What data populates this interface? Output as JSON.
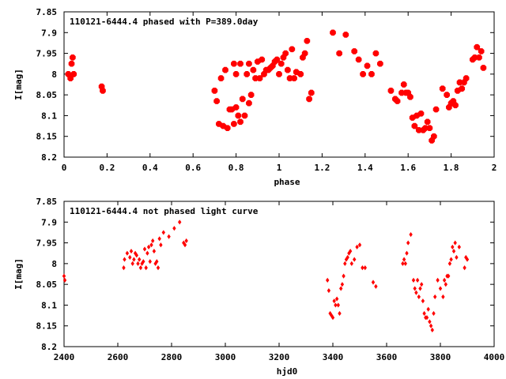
{
  "chart_data": [
    {
      "type": "scatter",
      "title": "110121-6444.4 phased with P=389.0day",
      "xlabel": "phase",
      "ylabel": "I[mag]",
      "xlim": [
        0,
        2
      ],
      "ylim": [
        7.85,
        8.2
      ],
      "y_inverted": true,
      "xticks": [
        "0",
        "0.2",
        "0.4",
        "0.6",
        "0.8",
        "1",
        "1.2",
        "1.4",
        "1.6",
        "1.8",
        "2"
      ],
      "xtick_values": [
        0,
        0.2,
        0.4,
        0.6,
        0.8,
        1,
        1.2,
        1.4,
        1.6,
        1.8,
        2
      ],
      "yticks": [
        "7.85",
        "7.9",
        "7.95",
        "8",
        "8.05",
        "8.1",
        "8.15",
        "8.2"
      ],
      "ytick_values": [
        7.85,
        7.9,
        7.95,
        8.0,
        8.05,
        8.1,
        8.15,
        8.2
      ],
      "marker_color": "#ff0000",
      "grid": false,
      "x": [
        0.02,
        0.03,
        0.035,
        0.04,
        0.045,
        0.175,
        0.18,
        0.7,
        0.71,
        0.72,
        0.73,
        0.74,
        0.75,
        0.76,
        0.77,
        0.78,
        0.79,
        0.79,
        0.8,
        0.8,
        0.81,
        0.82,
        0.82,
        0.83,
        0.84,
        0.85,
        0.86,
        0.86,
        0.87,
        0.88,
        0.89,
        0.9,
        0.91,
        0.92,
        0.93,
        0.94,
        0.95,
        0.96,
        0.97,
        0.98,
        0.99,
        1.0,
        1.01,
        1.02,
        1.03,
        1.04,
        1.05,
        1.06,
        1.07,
        1.08,
        1.1,
        1.11,
        1.12,
        1.13,
        1.14,
        1.15,
        1.25,
        1.28,
        1.31,
        1.35,
        1.37,
        1.39,
        1.41,
        1.43,
        1.45,
        1.47,
        1.52,
        1.54,
        1.55,
        1.57,
        1.58,
        1.59,
        1.6,
        1.61,
        1.62,
        1.63,
        1.64,
        1.65,
        1.66,
        1.67,
        1.68,
        1.69,
        1.7,
        1.71,
        1.72,
        1.73,
        1.76,
        1.78,
        1.79,
        1.8,
        1.81,
        1.82,
        1.83,
        1.84,
        1.85,
        1.86,
        1.87,
        1.9,
        1.91,
        1.92,
        1.93,
        1.94,
        1.95
      ],
      "y": [
        8.0,
        8.01,
        7.975,
        7.96,
        8.0,
        8.03,
        8.04,
        8.04,
        8.065,
        8.12,
        8.01,
        8.125,
        7.99,
        8.13,
        8.085,
        8.085,
        8.12,
        7.975,
        8.0,
        8.08,
        8.1,
        8.115,
        7.975,
        8.06,
        8.1,
        8.0,
        7.975,
        8.07,
        8.05,
        7.99,
        8.01,
        7.97,
        8.01,
        7.965,
        8.0,
        7.99,
        7.99,
        7.985,
        7.98,
        7.97,
        7.965,
        8.0,
        7.975,
        7.96,
        7.95,
        7.99,
        8.01,
        7.94,
        8.01,
        7.995,
        8.0,
        7.96,
        7.95,
        7.92,
        8.06,
        8.045,
        7.9,
        7.95,
        7.905,
        7.945,
        7.965,
        8.0,
        7.98,
        8.0,
        7.95,
        7.975,
        8.04,
        8.06,
        8.065,
        8.045,
        8.025,
        8.045,
        8.045,
        8.055,
        8.105,
        8.125,
        8.1,
        8.135,
        8.095,
        8.135,
        8.13,
        8.115,
        8.13,
        8.16,
        8.15,
        8.085,
        8.035,
        8.05,
        8.08,
        8.07,
        8.065,
        8.075,
        8.04,
        8.02,
        8.035,
        8.02,
        8.01,
        7.965,
        7.96,
        7.935,
        7.96,
        7.945,
        7.985
      ]
    },
    {
      "type": "scatter",
      "title": "110121-6444.4 not phased light curve",
      "xlabel": "hjd0",
      "ylabel": "I[mag]",
      "xlim": [
        2400,
        4000
      ],
      "ylim": [
        7.85,
        8.2
      ],
      "y_inverted": true,
      "xticks": [
        "2400",
        "2600",
        "2800",
        "3000",
        "3200",
        "3400",
        "3600",
        "3800",
        "4000"
      ],
      "xtick_values": [
        2400,
        2600,
        2800,
        3000,
        3200,
        3400,
        3600,
        3800,
        4000
      ],
      "yticks": [
        "7.85",
        "7.9",
        "7.95",
        "8",
        "8.05",
        "8.1",
        "8.15",
        "8.2"
      ],
      "ytick_values": [
        7.85,
        7.9,
        7.95,
        8.0,
        8.05,
        8.1,
        8.15,
        8.2
      ],
      "marker_color": "#ff0000",
      "grid": false,
      "x": [
        2400,
        2403,
        2622,
        2625,
        2635,
        2645,
        2650,
        2655,
        2660,
        2665,
        2670,
        2675,
        2680,
        2685,
        2690,
        2695,
        2700,
        2705,
        2710,
        2715,
        2720,
        2725,
        2730,
        2735,
        2740,
        2745,
        2750,
        2755,
        2760,
        2770,
        2790,
        2810,
        2830,
        2845,
        2850,
        2855,
        3380,
        3385,
        3390,
        3395,
        3400,
        3405,
        3410,
        3415,
        3420,
        3425,
        3430,
        3435,
        3440,
        3445,
        3450,
        3455,
        3460,
        3465,
        3470,
        3480,
        3490,
        3500,
        3510,
        3520,
        3550,
        3560,
        3660,
        3665,
        3670,
        3675,
        3680,
        3690,
        3700,
        3705,
        3710,
        3715,
        3720,
        3725,
        3730,
        3735,
        3740,
        3745,
        3750,
        3755,
        3760,
        3765,
        3770,
        3775,
        3780,
        3790,
        3800,
        3810,
        3815,
        3820,
        3825,
        3830,
        3835,
        3840,
        3845,
        3850,
        3855,
        3860,
        3870,
        3890,
        3895,
        3900
      ],
      "y": [
        8.03,
        8.04,
        8.01,
        7.99,
        7.975,
        7.985,
        7.97,
        8.0,
        7.99,
        7.975,
        7.98,
        8.0,
        7.99,
        8.01,
        8.0,
        7.995,
        7.965,
        8.01,
        7.975,
        7.96,
        7.995,
        7.955,
        7.945,
        7.97,
        8.0,
        7.995,
        8.01,
        7.94,
        7.955,
        7.925,
        7.935,
        7.915,
        7.9,
        7.95,
        7.955,
        7.945,
        8.04,
        8.065,
        8.12,
        8.125,
        8.13,
        8.09,
        8.1,
        8.085,
        8.1,
        8.12,
        8.06,
        8.05,
        8.03,
        8.0,
        7.99,
        7.985,
        7.975,
        7.97,
        8.0,
        7.99,
        7.96,
        7.955,
        8.01,
        8.01,
        8.045,
        8.055,
        8.0,
        7.99,
        8.0,
        7.975,
        7.95,
        7.93,
        8.04,
        8.06,
        8.07,
        8.04,
        8.08,
        8.06,
        8.05,
        8.09,
        8.12,
        8.13,
        8.13,
        8.11,
        8.14,
        8.15,
        8.16,
        8.12,
        8.08,
        8.04,
        8.06,
        8.08,
        8.04,
        8.05,
        8.03,
        8.03,
        8.0,
        7.99,
        7.96,
        7.97,
        7.95,
        7.985,
        7.96,
        8.01,
        7.985,
        7.99
      ]
    }
  ]
}
